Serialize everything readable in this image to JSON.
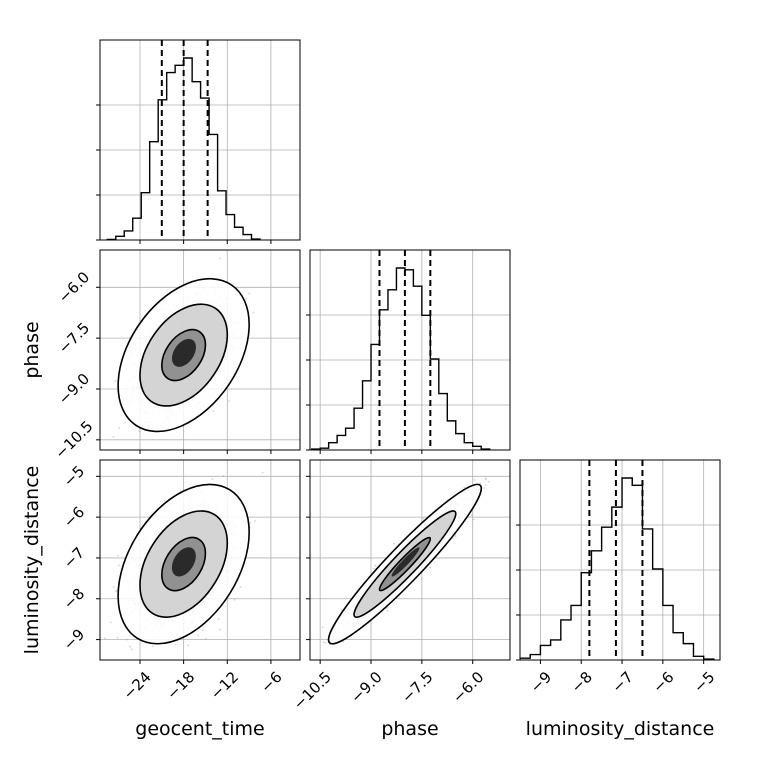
{
  "chart_data": {
    "type": "corner",
    "parameters": [
      {
        "name": "geocent_time",
        "label": "geocent_time",
        "range": [
          -29.5,
          -2.0
        ],
        "ticks": [
          -24,
          -18,
          -12,
          -6
        ],
        "tick_labels": [
          "−24",
          "−18",
          "−12",
          "−6"
        ],
        "quantiles": [
          -21.0,
          -18.0,
          -14.7
        ],
        "mean": -18.0,
        "sd": 3.0
      },
      {
        "name": "phase",
        "label": "phase",
        "range": [
          -10.8,
          -4.9
        ],
        "ticks": [
          -10.5,
          -9.0,
          -7.5,
          -6.0
        ],
        "tick_labels": [
          "−10.5",
          "−9.0",
          "−7.5",
          "−6.0"
        ],
        "quantiles": [
          -8.75,
          -8.0,
          -7.25
        ],
        "mean": -8.0,
        "sd": 0.75
      },
      {
        "name": "luminosity_distance",
        "label": "luminosity_distance",
        "range": [
          -9.5,
          -4.6
        ],
        "ticks": [
          -9,
          -8,
          -7,
          -6,
          -5
        ],
        "tick_labels": [
          "−9",
          "−8",
          "−7",
          "−6",
          "−5"
        ],
        "quantiles": [
          -7.8,
          -7.15,
          -6.5
        ],
        "mean": -7.15,
        "sd": 0.65
      }
    ],
    "histograms": {
      "geocent_time": {
        "bin_edges": [
          -28.5,
          -27.33,
          -26.17,
          -25.0,
          -23.83,
          -22.67,
          -21.5,
          -20.33,
          -19.17,
          -18.0,
          -16.83,
          -15.67,
          -14.5,
          -13.33,
          -12.17,
          -11.0,
          -9.83,
          -8.67,
          -7.5
        ],
        "counts": [
          0.3,
          2,
          5,
          12,
          26,
          54,
          77,
          92,
          96,
          100,
          87,
          78,
          58,
          27,
          14,
          7,
          3,
          0.5
        ]
      },
      "phase": {
        "bin_edges": [
          -10.75,
          -10.5,
          -10.25,
          -10.0,
          -9.75,
          -9.5,
          -9.25,
          -9.0,
          -8.75,
          -8.5,
          -8.25,
          -8.0,
          -7.75,
          -7.5,
          -7.25,
          -7.0,
          -6.75,
          -6.5,
          -6.25,
          -6.0,
          -5.75,
          -5.5
        ],
        "counts": [
          0.5,
          1,
          4,
          8,
          12,
          23,
          38,
          58,
          77,
          88,
          100,
          99,
          90,
          74,
          50,
          31,
          16,
          9,
          4,
          2,
          0.5
        ]
      },
      "luminosity_distance": {
        "bin_edges": [
          -9.5,
          -9.25,
          -9.0,
          -8.75,
          -8.5,
          -8.25,
          -8.0,
          -7.75,
          -7.5,
          -7.25,
          -7.0,
          -6.75,
          -6.5,
          -6.25,
          -6.0,
          -5.75,
          -5.5,
          -5.25,
          -5.0,
          -4.75
        ],
        "counts": [
          1,
          3,
          8,
          11,
          22,
          30,
          48,
          60,
          73,
          84,
          100,
          96,
          72,
          50,
          30,
          15,
          9,
          2,
          0.5
        ]
      }
    },
    "correlations": {
      "phase|geocent_time": 0.4,
      "luminosity_distance|geocent_time": 0.4,
      "luminosity_distance|phase": 0.95
    },
    "contour_levels": [
      0.393,
      0.865,
      0.989
    ],
    "grid": true,
    "quantile_line_style": "dashed"
  }
}
